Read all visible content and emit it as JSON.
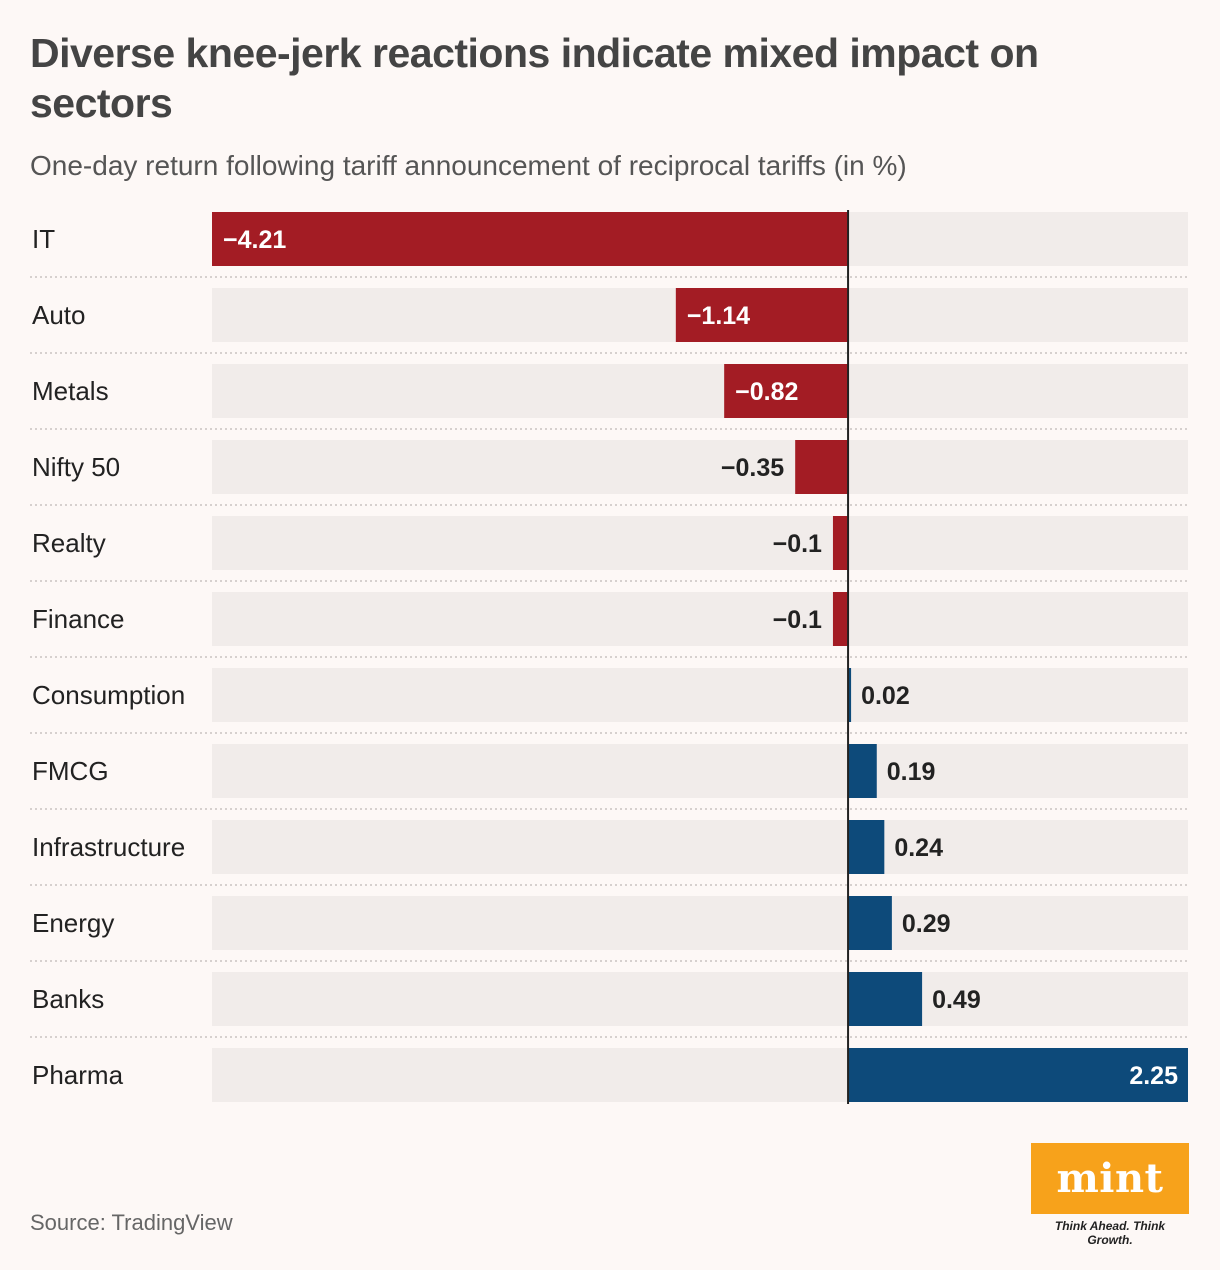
{
  "title": "Diverse knee-jerk reactions indicate mixed impact on sectors",
  "subtitle": "One-day return following tariff announcement of reciprocal tariffs (in %)",
  "source": "Source: TradingView",
  "logo": {
    "name": "mint",
    "tagline": "Think Ahead. Think Growth."
  },
  "colors": {
    "negative": "#a31c24",
    "positive": "#0d4a7a",
    "track": "#f1ecea",
    "background": "#fdf8f6",
    "logo": "#f7a21b"
  },
  "chart_data": {
    "type": "bar",
    "orientation": "horizontal",
    "title": "Diverse knee-jerk reactions indicate mixed impact on sectors",
    "subtitle": "One-day return following tariff announcement of reciprocal tariffs (in %)",
    "xlabel": "",
    "ylabel": "",
    "xlim": [
      -4.21,
      2.25
    ],
    "categories": [
      "IT",
      "Auto",
      "Metals",
      "Nifty 50",
      "Realty",
      "Finance",
      "Consumption",
      "FMCG",
      "Infrastructure",
      "Energy",
      "Banks",
      "Pharma"
    ],
    "values": [
      -4.21,
      -1.14,
      -0.82,
      -0.35,
      -0.1,
      -0.1,
      0.02,
      0.19,
      0.24,
      0.29,
      0.49,
      2.25
    ],
    "value_labels": [
      "−4.21",
      "−1.14",
      "−0.82",
      "−0.35",
      "−0.1",
      "−0.1",
      "0.02",
      "0.19",
      "0.24",
      "0.29",
      "0.49",
      "2.25"
    ]
  }
}
